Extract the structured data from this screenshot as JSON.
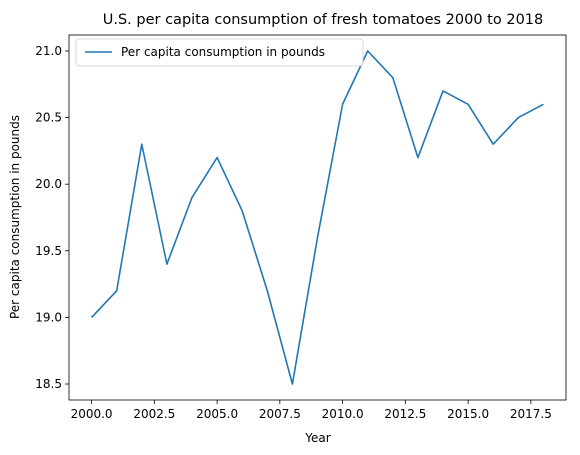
{
  "chart_data": {
    "type": "line",
    "title": "U.S. per capita consumption of fresh tomatoes 2000 to 2018",
    "xlabel": "Year",
    "ylabel": "Per capita consumption in pounds",
    "xlim": [
      1999.1,
      2018.9
    ],
    "ylim": [
      18.38,
      21.12
    ],
    "xticks": [
      "2000.0",
      "2002.5",
      "2005.0",
      "2007.5",
      "2010.0",
      "2012.5",
      "2015.0",
      "2017.5"
    ],
    "yticks": [
      "18.5",
      "19.0",
      "19.5",
      "20.0",
      "20.5",
      "21.0"
    ],
    "legend_position": "top-left",
    "grid": false,
    "series": [
      {
        "name": "Per capita consumption in pounds",
        "color": "#1f77b4",
        "x": [
          2000,
          2001,
          2002,
          2003,
          2004,
          2005,
          2006,
          2007,
          2008,
          2009,
          2010,
          2011,
          2012,
          2013,
          2014,
          2015,
          2016,
          2017,
          2018
        ],
        "y": [
          19.0,
          19.2,
          20.3,
          19.4,
          19.9,
          20.2,
          19.8,
          19.2,
          18.5,
          19.6,
          20.6,
          21.0,
          20.8,
          20.2,
          20.7,
          20.6,
          20.3,
          20.5,
          20.6
        ]
      }
    ]
  }
}
